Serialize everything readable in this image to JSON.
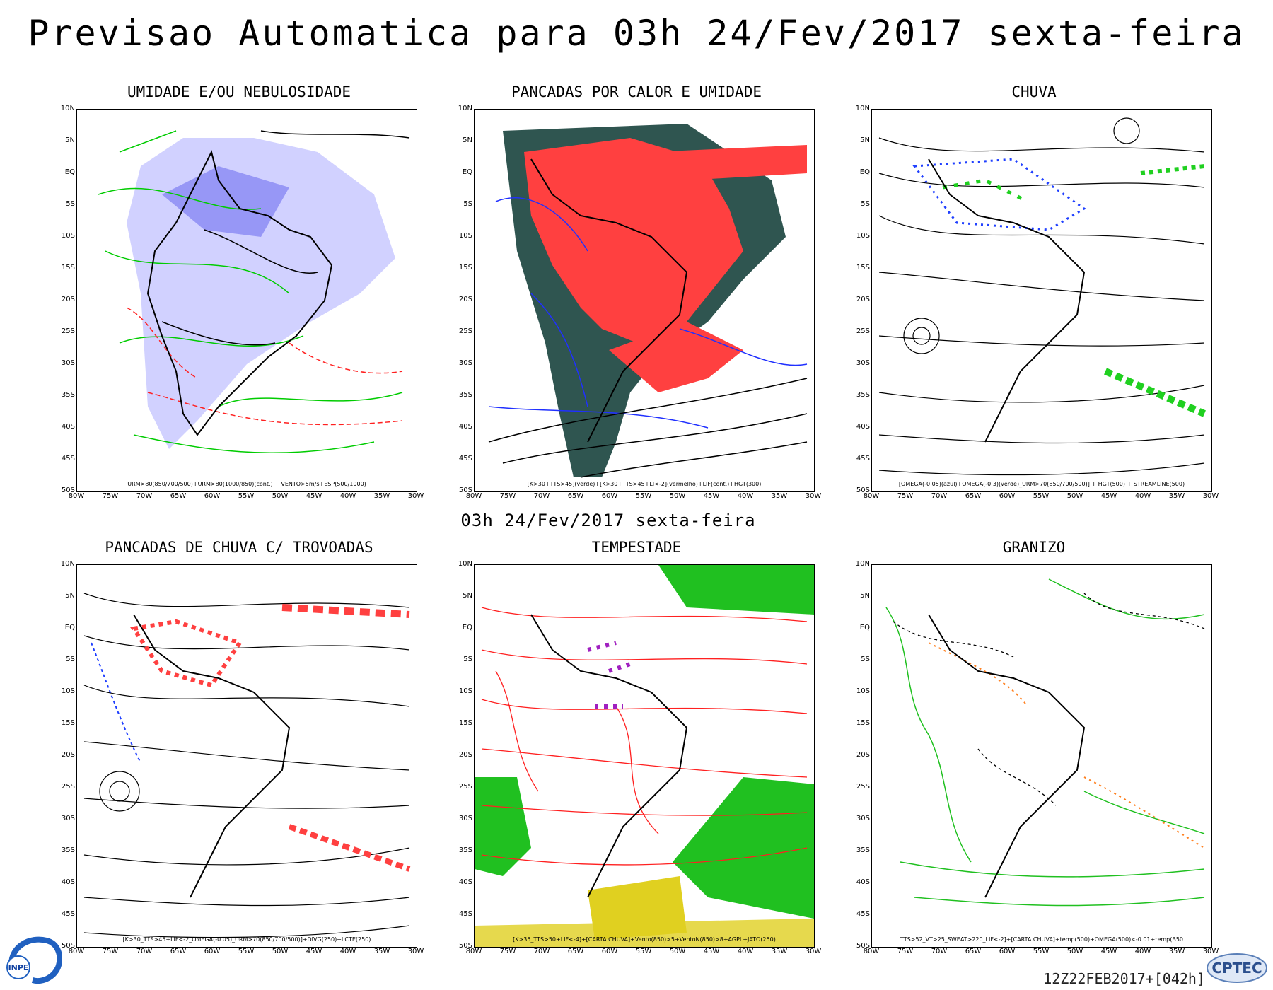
{
  "header": {
    "title": "Previsao Automatica  para 03h 24/Fev/2017 sexta-feira"
  },
  "subheader": {
    "title": "03h 24/Fev/2017 sexta-feira"
  },
  "axes": {
    "latitudes": [
      "10N",
      "5N",
      "EQ",
      "5S",
      "10S",
      "15S",
      "20S",
      "25S",
      "30S",
      "35S",
      "40S",
      "45S",
      "50S"
    ],
    "longitudes": [
      "80W",
      "75W",
      "70W",
      "65W",
      "60W",
      "55W",
      "50W",
      "45W",
      "40W",
      "35W",
      "30W"
    ]
  },
  "panels": [
    {
      "title": "UMIDADE E/OU NEBULOSIDADE",
      "caption": "URM>80(850/700/500)+URM>80(1000/850)(cont.) + VENTO>5m/s+ESP(500/1000)"
    },
    {
      "title": "PANCADAS POR CALOR E UMIDADE",
      "caption": "[K>30+TTS>45](verde)+[K>30+TTS>45+LI<-2](vermelho)+LIF(cont.)+HGT(300)"
    },
    {
      "title": "CHUVA",
      "caption": "[OMEGA(-0.05)(azul)+OMEGA(-0.3)(verde)_URM>70(850/700/500)] + HGT(500) + STREAMLINE(500)"
    },
    {
      "title": "PANCADAS DE CHUVA C/ TROVOADAS",
      "caption": "[K>30_TTS>45+LIF<-2_OMEGA(-0.05)_URM>70(850/700/500)]+DIVG(250)+LCTE(250)"
    },
    {
      "title": "TEMPESTADE",
      "caption": "[K>35_TTS>50+LIF<-4]+[CARTA CHUVA]+Vento(850)>5+VentoN(850)>8+AGPL+JATO(250)"
    },
    {
      "title": "GRANIZO",
      "caption": "TTS>52_VT>25_SWEAT>220_LIF<-2]+[CARTA CHUVA]+temp(500)+OMEGA(500)<-0.01+temp(B50"
    }
  ],
  "footer": {
    "run": "12Z22FEB2017+[042h]"
  },
  "logos": {
    "left": "INPE",
    "right": "CPTEC"
  }
}
